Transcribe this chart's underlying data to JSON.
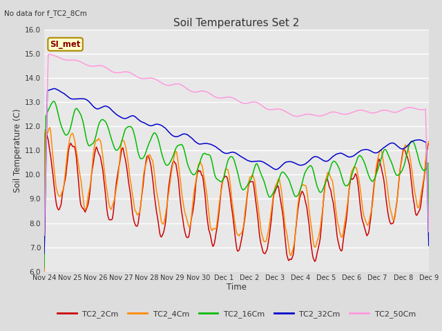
{
  "title": "Soil Temperatures Set 2",
  "subtitle": "No data for f_TC2_8Cm",
  "ylabel": "Soil Temperature (C)",
  "xlabel": "Time",
  "ylim": [
    6.0,
    16.0
  ],
  "yticks": [
    6.0,
    7.0,
    8.0,
    9.0,
    10.0,
    11.0,
    12.0,
    13.0,
    14.0,
    15.0,
    16.0
  ],
  "xtick_labels": [
    "Nov 24",
    "Nov 25",
    "Nov 26",
    "Nov 27",
    "Nov 28",
    "Nov 29",
    "Nov 30",
    "Dec 1",
    "Dec 2",
    "Dec 3",
    "Dec 4",
    "Dec 5",
    "Dec 6",
    "Dec 7",
    "Dec 8",
    "Dec 9"
  ],
  "series_colors": {
    "TC2_2Cm": "#CC0000",
    "TC2_4Cm": "#FF8800",
    "TC2_16Cm": "#00BB00",
    "TC2_32Cm": "#0000CC",
    "TC2_50Cm": "#FF99DD"
  },
  "legend_label": "SI_met",
  "legend_bg": "#FFFFCC",
  "legend_border": "#886600",
  "bg_color": "#E8E8E8",
  "grid_color": "#FFFFFF",
  "fig_bg": "#DDDDDD",
  "n_points": 480
}
